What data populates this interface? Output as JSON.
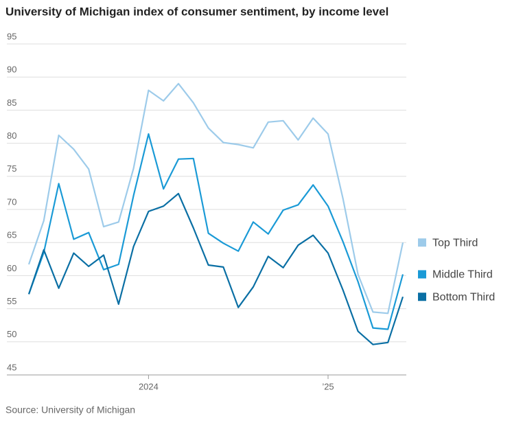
{
  "chart_data": {
    "type": "line",
    "title": "University of Michigan index of consumer sentiment, by income level",
    "source": "Source: University of Michigan",
    "categories": [
      null,
      null,
      null,
      null,
      null,
      null,
      null,
      null,
      "2024",
      null,
      null,
      null,
      null,
      null,
      null,
      null,
      null,
      null,
      null,
      null,
      "’25",
      null,
      null,
      null,
      null,
      null
    ],
    "ylim": [
      45,
      95
    ],
    "yticks": [
      45,
      50,
      55,
      60,
      65,
      70,
      75,
      80,
      85,
      90,
      95
    ],
    "grid": true,
    "series": [
      {
        "name": "Top Third",
        "color": "#9dcbea",
        "values": [
          61.7,
          68.3,
          81.2,
          79.1,
          76.1,
          67.4,
          68.1,
          76.2,
          88.0,
          86.4,
          89.0,
          86.1,
          82.3,
          80.1,
          79.8,
          79.3,
          83.2,
          83.4,
          80.5,
          83.8,
          81.4,
          71.6,
          60.2,
          54.5,
          54.3,
          65.0
        ]
      },
      {
        "name": "Middle Third",
        "color": "#1a9ad6",
        "values": [
          57.2,
          63.5,
          73.9,
          65.5,
          66.5,
          60.9,
          61.7,
          72.1,
          81.4,
          73.1,
          77.6,
          77.7,
          66.4,
          64.9,
          63.7,
          68.1,
          66.3,
          69.9,
          70.7,
          73.7,
          70.5,
          65.1,
          59.1,
          52.1,
          51.9,
          60.2
        ]
      },
      {
        "name": "Bottom Third",
        "color": "#0a6fa4",
        "values": [
          57.2,
          63.9,
          58.1,
          63.4,
          61.4,
          63.1,
          55.7,
          64.4,
          69.7,
          70.5,
          72.4,
          67.2,
          61.6,
          61.3,
          55.2,
          58.3,
          62.9,
          61.2,
          64.6,
          66.1,
          63.4,
          57.8,
          51.6,
          49.6,
          49.9,
          56.8
        ]
      }
    ]
  }
}
